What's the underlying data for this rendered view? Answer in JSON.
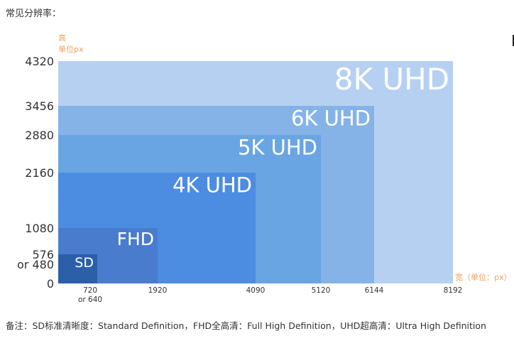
{
  "header": {
    "text": "常见分辨率："
  },
  "footer": {
    "text": "备注：SD标准清晰度：Standard Definition，FHD全高清：Full High Definition，UHD超高清：Ultra High Definition"
  },
  "chart_data": {
    "type": "area",
    "ylabel_lines": [
      "高",
      "单位px"
    ],
    "xlabel": "宽（单位：px）",
    "y_ticks": [
      {
        "label": "4320",
        "value": 4320
      },
      {
        "label": "3456",
        "value": 3456
      },
      {
        "label": "2880",
        "value": 2880
      },
      {
        "label": "2160",
        "value": 2160
      },
      {
        "label": "1080",
        "value": 1080
      },
      {
        "label": "576",
        "value": 576
      },
      {
        "label": "or 480",
        "value": 480
      },
      {
        "label": "0",
        "value": 0
      }
    ],
    "x_ticks": [
      {
        "lines": [
          "720",
          "or 640"
        ],
        "value": 720
      },
      {
        "lines": [
          "1920"
        ],
        "value": 1920
      },
      {
        "lines": [
          "4090"
        ],
        "value": 4090
      },
      {
        "lines": [
          "5120"
        ],
        "value": 5120
      },
      {
        "lines": [
          "6144"
        ],
        "value": 6144
      },
      {
        "lines": [
          "8192"
        ],
        "value": 8192
      }
    ],
    "resolutions": [
      {
        "name": "8K UHD",
        "width": 8192,
        "height": 4320,
        "color": "#b6d0f2"
      },
      {
        "name": "6K UHD",
        "width": 6144,
        "height": 3456,
        "color": "#85b3e8"
      },
      {
        "name": "5K UHD",
        "width": 5120,
        "height": 2880,
        "color": "#69a5e3"
      },
      {
        "name": "4K UHD",
        "width": 4090,
        "height": 2160,
        "color": "#4c8ce1"
      },
      {
        "name": "FHD",
        "width": 1920,
        "height": 1080,
        "color": "#4a7ccd"
      },
      {
        "name": "SD",
        "width": 720,
        "height": 576,
        "color": "#2b5fa8"
      }
    ],
    "axis_label_color": "#f0a35e",
    "tick_color": "#333333"
  }
}
